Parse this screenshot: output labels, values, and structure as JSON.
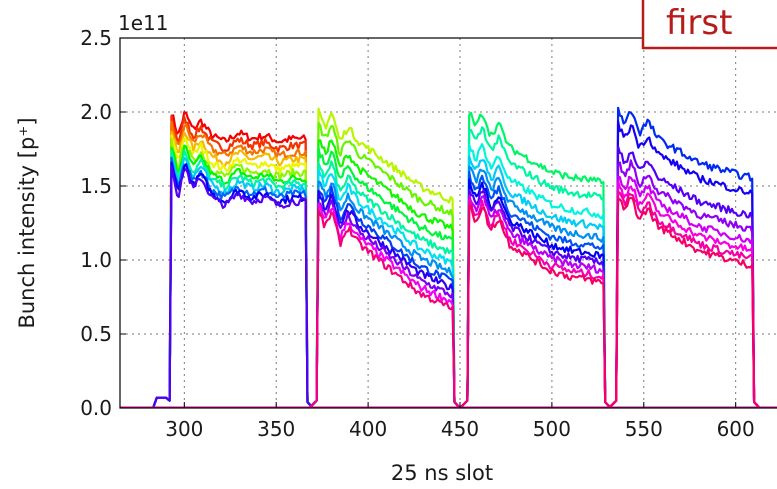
{
  "chart_data": {
    "type": "line",
    "title": "",
    "xlabel": "25 ns slot",
    "ylabel": "Bunch intensity [p⁺]",
    "y_offset_label": "1e11",
    "xlim": [
      265,
      635
    ],
    "ylim": [
      0,
      2.5
    ],
    "xticks": [
      300,
      350,
      400,
      450,
      500,
      550,
      600
    ],
    "xtick_labels": [
      "300",
      "350",
      "400",
      "450",
      "500",
      "550",
      "600"
    ],
    "yticks": [
      0.0,
      0.5,
      1.0,
      1.5,
      2.0,
      2.5
    ],
    "ytick_labels": [
      "0.0",
      "0.5",
      "1.0",
      "1.5",
      "2.0",
      "2.5"
    ],
    "grid": true,
    "annotation": "first",
    "colors": {
      "annotation_border": "#b71c1c",
      "annotation_text": "#b71c1c",
      "palette": "hsv rainbow: red → orange → yellow → green → cyan → blue → purple → magenta"
    },
    "trains": [
      {
        "start": 293,
        "end": 366,
        "pre_start": 283,
        "shape": [
          [
            0,
            1.0
          ],
          [
            0.05,
            0.92
          ],
          [
            0.1,
            1.0
          ],
          [
            0.16,
            0.94
          ],
          [
            0.22,
            0.97
          ],
          [
            0.3,
            0.92
          ],
          [
            0.4,
            0.9
          ],
          [
            0.5,
            0.93
          ],
          [
            0.6,
            0.91
          ],
          [
            0.7,
            0.92
          ],
          [
            0.8,
            0.9
          ],
          [
            0.9,
            0.91
          ],
          [
            1.0,
            0.91
          ]
        ],
        "levels": [
          2.0,
          1.96,
          1.92,
          1.88,
          1.84,
          1.8,
          1.77,
          1.74,
          1.71,
          1.68,
          1.66,
          1.64
        ],
        "hues": [
          0,
          12,
          28,
          45,
          62,
          85,
          120,
          160,
          190,
          215,
          240,
          260
        ]
      },
      {
        "start": 373,
        "end": 446,
        "shape": [
          [
            0,
            1.0
          ],
          [
            0.05,
            0.95
          ],
          [
            0.1,
            1.0
          ],
          [
            0.16,
            0.9
          ],
          [
            0.22,
            0.95
          ],
          [
            0.3,
            0.9
          ],
          [
            0.45,
            0.85
          ],
          [
            0.6,
            0.8
          ],
          [
            0.75,
            0.75
          ],
          [
            0.9,
            0.72
          ],
          [
            1.0,
            0.7
          ]
        ],
        "levels": [
          2.0,
          1.92,
          1.82,
          1.74,
          1.66,
          1.6,
          1.54,
          1.49,
          1.45,
          1.41,
          1.37,
          1.33
        ],
        "hues": [
          75,
          95,
          115,
          135,
          160,
          185,
          205,
          225,
          250,
          270,
          300,
          330
        ]
      },
      {
        "start": 455,
        "end": 528,
        "shape": [
          [
            0,
            1.0
          ],
          [
            0.05,
            0.95
          ],
          [
            0.1,
            1.0
          ],
          [
            0.16,
            0.92
          ],
          [
            0.22,
            0.96
          ],
          [
            0.3,
            0.88
          ],
          [
            0.45,
            0.84
          ],
          [
            0.6,
            0.8
          ],
          [
            0.75,
            0.78
          ],
          [
            0.9,
            0.77
          ],
          [
            1.0,
            0.76
          ]
        ],
        "levels": [
          2.0,
          1.9,
          1.78,
          1.7,
          1.63,
          1.57,
          1.52,
          1.48,
          1.44,
          1.4,
          1.37
        ],
        "hues": [
          145,
          160,
          175,
          190,
          205,
          220,
          240,
          260,
          285,
          315,
          335
        ]
      },
      {
        "start": 536,
        "end": 609,
        "shape": [
          [
            0,
            1.0
          ],
          [
            0.05,
            0.95
          ],
          [
            0.1,
            1.0
          ],
          [
            0.16,
            0.92
          ],
          [
            0.22,
            0.96
          ],
          [
            0.3,
            0.9
          ],
          [
            0.45,
            0.86
          ],
          [
            0.6,
            0.82
          ],
          [
            0.75,
            0.8
          ],
          [
            0.9,
            0.78
          ],
          [
            1.0,
            0.77
          ]
        ],
        "levels": [
          2.02,
          1.92,
          1.75,
          1.66,
          1.58,
          1.52,
          1.47,
          1.43
        ],
        "hues": [
          230,
          245,
          260,
          275,
          290,
          305,
          320,
          335
        ]
      }
    ]
  }
}
